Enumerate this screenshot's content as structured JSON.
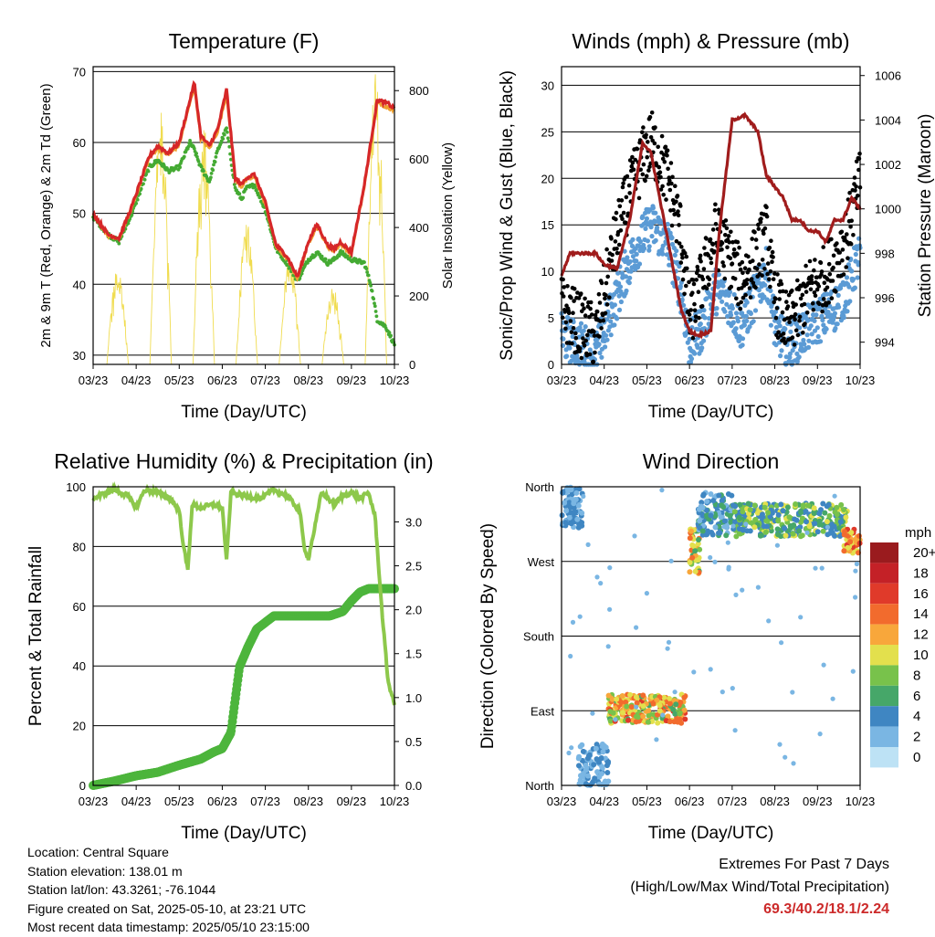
{
  "chart_data": [
    {
      "type": "line",
      "title": "Temperature (F)",
      "xlabel": "Time (Day/UTC)",
      "ylabel": "2m & 9m T (Red, Orange) & 2m Td (Green)",
      "y2label": "Solar Insolation (Yellow)",
      "x_ticks": [
        "03/23",
        "04/23",
        "05/23",
        "06/23",
        "07/23",
        "08/23",
        "09/23",
        "10/23"
      ],
      "ylim": [
        28.7,
        70.7
      ],
      "y_ticks": [
        30,
        40,
        50,
        60,
        70
      ],
      "y2lim": [
        0,
        870
      ],
      "y2_ticks": [
        0,
        200,
        400,
        600,
        800
      ],
      "grid": true,
      "series": [
        {
          "name": "2m T",
          "color": "#d62728",
          "x": [
            0.0,
            0.35,
            0.6,
            0.9,
            1.3,
            1.5,
            1.75,
            2.0,
            2.25,
            2.35,
            2.5,
            2.7,
            2.9,
            3.1,
            3.3,
            3.45,
            3.55,
            3.75,
            4.0,
            4.25,
            4.5,
            4.75,
            5.0,
            5.2,
            5.45,
            5.6,
            5.75,
            6.0,
            6.3,
            6.6,
            6.85,
            6.95,
            7.0
          ],
          "values": [
            50.0,
            47.0,
            46.5,
            51.0,
            58.0,
            59.5,
            58.5,
            60.0,
            66.0,
            68.5,
            61.0,
            59.5,
            62.0,
            67.5,
            55.0,
            54.0,
            55.0,
            55.5,
            51.5,
            45.5,
            44.0,
            41.0,
            46.0,
            48.5,
            45.5,
            45.0,
            46.0,
            44.5,
            54.0,
            66.0,
            65.5,
            65.0,
            65.0
          ]
        },
        {
          "name": "9m T",
          "color": "#f0a030",
          "x": [
            0.0,
            0.35,
            0.6,
            0.9,
            1.3,
            1.5,
            1.75,
            2.0,
            2.25,
            2.35,
            2.5,
            2.7,
            2.9,
            3.1,
            3.3,
            3.45,
            3.55,
            3.75,
            4.0,
            4.25,
            4.5,
            4.75,
            5.0,
            5.2,
            5.45,
            5.6,
            5.75,
            6.0,
            6.3,
            6.6,
            6.85,
            6.95,
            7.0
          ],
          "values": [
            49.8,
            46.8,
            46.3,
            50.8,
            57.7,
            59.2,
            58.2,
            59.6,
            65.5,
            67.8,
            60.6,
            59.1,
            61.6,
            66.8,
            54.7,
            53.7,
            54.7,
            55.1,
            51.2,
            45.2,
            43.7,
            40.8,
            45.7,
            48.2,
            45.2,
            44.7,
            45.7,
            44.2,
            53.6,
            65.5,
            65.0,
            64.6,
            64.6
          ]
        },
        {
          "name": "2m Td",
          "color": "#44aa33",
          "x": [
            0.0,
            0.35,
            0.6,
            0.9,
            1.3,
            1.5,
            1.75,
            2.0,
            2.25,
            2.35,
            2.5,
            2.7,
            2.9,
            3.1,
            3.3,
            3.45,
            3.55,
            3.75,
            4.0,
            4.25,
            4.5,
            4.75,
            5.0,
            5.2,
            5.45,
            5.6,
            5.75,
            6.0,
            6.3,
            6.45,
            6.6,
            6.8,
            7.0
          ],
          "values": [
            49.5,
            47.0,
            46.0,
            50.0,
            56.5,
            57.5,
            56.0,
            56.5,
            60.0,
            59.0,
            56.5,
            54.5,
            59.0,
            62.0,
            53.5,
            52.0,
            53.5,
            54.0,
            50.5,
            45.0,
            43.0,
            40.5,
            43.5,
            44.5,
            43.0,
            43.5,
            44.5,
            43.5,
            43.0,
            40.0,
            35.0,
            34.0,
            31.5
          ]
        },
        {
          "name": "Solar Insolation",
          "color": "#f0dc50",
          "axis": "y2",
          "days": [
            0,
            1,
            2,
            3,
            4,
            5,
            6
          ],
          "peaks": [
            290,
            760,
            700,
            420,
            320,
            240,
            860
          ]
        }
      ]
    },
    {
      "type": "scatter",
      "title": "Winds (mph) & Pressure (mb)",
      "xlabel": "Time (Day/UTC)",
      "ylabel": "Sonic/Prop Wind & Gust (Blue, Black)",
      "y2label": "Station Pressure (Maroon)",
      "x_ticks": [
        "03/23",
        "04/23",
        "05/23",
        "06/23",
        "07/23",
        "08/23",
        "09/23",
        "10/23"
      ],
      "ylim": [
        0,
        32
      ],
      "y_ticks": [
        0,
        5,
        10,
        15,
        20,
        25,
        30
      ],
      "y2lim": [
        993.0,
        1006.4
      ],
      "y2_ticks": [
        994,
        996,
        998,
        1000,
        1002,
        1004,
        1006
      ],
      "grid": true,
      "series": [
        {
          "name": "Wind",
          "color": "#5b9bd5",
          "x": [
            0.0,
            0.5,
            0.8,
            1.2,
            1.5,
            1.8,
            2.1,
            2.5,
            2.8,
            3.0,
            3.3,
            3.6,
            3.9,
            4.2,
            4.5,
            4.8,
            5.0,
            5.3,
            5.6,
            5.8,
            6.1,
            6.4,
            6.7,
            7.0
          ],
          "values": [
            3.0,
            2.0,
            1.0,
            6.0,
            10.0,
            13.0,
            15.0,
            13.0,
            8.0,
            2.0,
            4.0,
            8.0,
            7.0,
            4.0,
            7.0,
            10.0,
            4.0,
            2.0,
            3.0,
            4.0,
            5.0,
            6.0,
            8.0,
            12.0
          ]
        },
        {
          "name": "Gust",
          "color": "#000000",
          "x": [
            0.0,
            0.5,
            0.8,
            1.2,
            1.5,
            1.8,
            2.1,
            2.5,
            2.8,
            3.0,
            3.3,
            3.6,
            3.9,
            4.2,
            4.5,
            4.8,
            5.0,
            5.3,
            5.6,
            5.8,
            6.1,
            6.4,
            6.7,
            7.0
          ],
          "values": [
            6.0,
            4.0,
            3.0,
            12.0,
            17.0,
            21.0,
            24.0,
            20.0,
            14.0,
            5.0,
            9.0,
            14.0,
            12.0,
            9.0,
            11.0,
            14.0,
            7.0,
            4.0,
            6.0,
            8.0,
            9.0,
            11.0,
            14.0,
            20.0
          ]
        },
        {
          "name": "Pressure",
          "color": "#a01c1c",
          "axis": "y2",
          "x": [
            0.0,
            0.2,
            0.5,
            0.8,
            1.0,
            1.3,
            1.6,
            1.9,
            2.1,
            2.4,
            2.6,
            2.8,
            3.0,
            3.2,
            3.5,
            3.7,
            4.0,
            4.3,
            4.6,
            4.8,
            5.0,
            5.2,
            5.4,
            5.6,
            5.8,
            6.0,
            6.2,
            6.4,
            6.6,
            6.8,
            7.0
          ],
          "values": [
            997.0,
            998.0,
            998.0,
            998.0,
            997.5,
            997.3,
            999.5,
            1003.0,
            1002.5,
            999.5,
            997.5,
            995.5,
            994.5,
            994.3,
            994.5,
            999.0,
            1004.0,
            1004.2,
            1003.5,
            1001.5,
            1001.0,
            1000.5,
            999.5,
            999.5,
            999.0,
            999.0,
            998.5,
            999.5,
            999.5,
            1000.5,
            1000.0
          ]
        }
      ]
    },
    {
      "type": "line",
      "title": "Relative Humidity (%) & Precipitation (in)",
      "xlabel": "Time (Day/UTC)",
      "ylabel": "Percent & Total Rainfall",
      "x_ticks": [
        "03/23",
        "04/23",
        "05/23",
        "06/23",
        "07/23",
        "08/23",
        "09/23",
        "10/23"
      ],
      "ylim": [
        0,
        100
      ],
      "y_ticks": [
        0,
        20,
        40,
        60,
        80,
        100
      ],
      "y2lim": [
        0,
        3.4
      ],
      "y2_ticks": [
        "0.0",
        "0.5",
        "1.0",
        "1.5",
        "2.0",
        "2.5",
        "3.0"
      ],
      "grid": true,
      "series": [
        {
          "name": "Relative Humidity",
          "color": "#8dc84b",
          "x": [
            0.0,
            0.3,
            0.5,
            0.8,
            1.0,
            1.2,
            1.5,
            1.8,
            2.0,
            2.1,
            2.2,
            2.3,
            2.5,
            2.8,
            3.0,
            3.1,
            3.2,
            3.5,
            3.9,
            4.2,
            4.5,
            4.8,
            4.9,
            5.0,
            5.2,
            5.3,
            5.4,
            5.6,
            5.8,
            6.0,
            6.2,
            6.4,
            6.55,
            6.7,
            6.85,
            7.0
          ],
          "values": [
            96.0,
            98.0,
            99.0,
            97.0,
            93.0,
            99.0,
            98.0,
            96.0,
            92.0,
            80.0,
            72.0,
            94.0,
            93.0,
            94.0,
            93.0,
            75.0,
            98.0,
            97.0,
            96.0,
            99.0,
            97.0,
            92.0,
            80.0,
            76.0,
            90.0,
            98.0,
            97.0,
            94.0,
            97.0,
            98.0,
            96.0,
            98.0,
            90.0,
            60.0,
            35.0,
            27.0
          ]
        },
        {
          "name": "Total Precipitation",
          "color": "#4db53c",
          "axis": "y2",
          "x": [
            0.0,
            0.5,
            1.0,
            1.5,
            2.0,
            2.5,
            2.8,
            3.0,
            3.2,
            3.4,
            3.6,
            3.8,
            4.2,
            4.8,
            5.2,
            5.5,
            5.8,
            6.0,
            6.2,
            6.4,
            6.6,
            7.0
          ],
          "values": [
            0.0,
            0.05,
            0.11,
            0.15,
            0.23,
            0.3,
            0.38,
            0.42,
            0.6,
            1.35,
            1.58,
            1.78,
            1.93,
            1.93,
            1.93,
            1.93,
            1.98,
            2.1,
            2.2,
            2.24,
            2.24,
            2.24
          ]
        }
      ]
    },
    {
      "type": "scatter",
      "title": "Wind Direction",
      "xlabel": "Time (Day/UTC)",
      "ylabel": "Direction (Colored By Speed)",
      "x_ticks": [
        "03/23",
        "04/23",
        "05/23",
        "06/23",
        "07/23",
        "08/23",
        "09/23",
        "10/23"
      ],
      "ylim": [
        0,
        360
      ],
      "y_ticks": [
        "North",
        "East",
        "South",
        "West",
        "North"
      ],
      "grid": true,
      "legend": {
        "title": "mph",
        "placement": "right",
        "labels": [
          "20+",
          "18",
          "16",
          "14",
          "12",
          "10",
          "8",
          "6",
          "4",
          "2",
          "0"
        ],
        "colors": [
          "#9a1b1e",
          "#c42127",
          "#e03a2a",
          "#f26b2d",
          "#f8a73b",
          "#e3e04d",
          "#78c24b",
          "#46a769",
          "#3f86c2",
          "#7ab6e3",
          "#bde2f5"
        ]
      },
      "clusters": [
        {
          "x": [
            0.0,
            0.5
          ],
          "dir": [
            310,
            360
          ],
          "speed": [
            2,
            5
          ]
        },
        {
          "x": [
            0.4,
            1.1
          ],
          "dir": [
            0,
            50
          ],
          "speed": [
            1,
            4
          ]
        },
        {
          "x": [
            1.1,
            2.9
          ],
          "dir": [
            75,
            110
          ],
          "speed": [
            6,
            16
          ]
        },
        {
          "x": [
            3.0,
            3.25
          ],
          "dir": [
            255,
            310
          ],
          "speed": [
            6,
            14
          ]
        },
        {
          "x": [
            3.2,
            4.0
          ],
          "dir": [
            300,
            355
          ],
          "speed": [
            2,
            6
          ]
        },
        {
          "x": [
            4.0,
            6.7
          ],
          "dir": [
            300,
            340
          ],
          "speed": [
            3,
            10
          ]
        },
        {
          "x": [
            6.6,
            7.0
          ],
          "dir": [
            280,
            310
          ],
          "speed": [
            9,
            16
          ]
        }
      ]
    }
  ],
  "info": {
    "location": "Location: Central Square",
    "elevation": "Station elevation: 138.01 m",
    "latlon": "Station lat/lon: 43.3261; -76.1044",
    "created": "Figure created on Sat, 2025-05-10, at 23:21 UTC",
    "recent": "Most recent data timestamp: 2025/05/10 23:15:00"
  },
  "extremes": {
    "heading": "Extremes For Past 7 Days",
    "subheading": "(High/Low/Max Wind/Total Precipitation)",
    "values": "69.3/40.2/18.1/2.24"
  }
}
